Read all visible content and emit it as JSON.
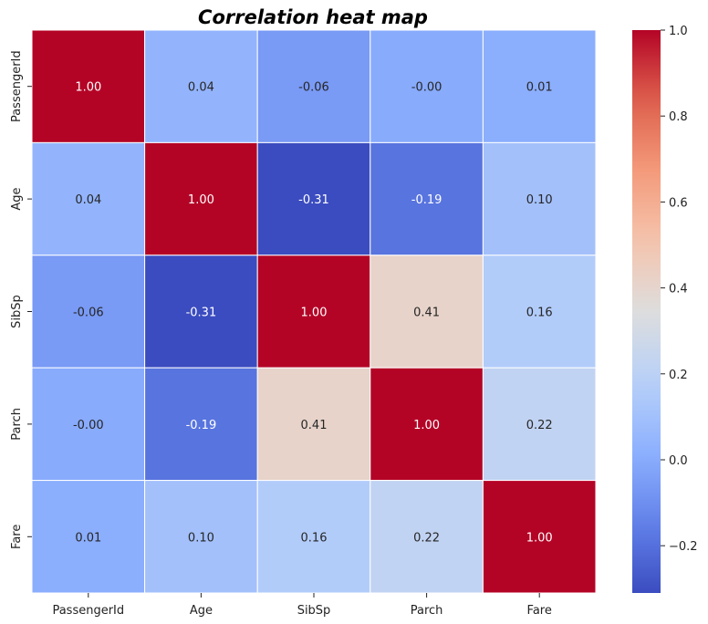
{
  "chart_data": {
    "type": "heatmap",
    "title": "Correlation heat map",
    "xlabel": "",
    "ylabel": "",
    "x_categories": [
      "PassengerId",
      "Age",
      "SibSp",
      "Parch",
      "Fare"
    ],
    "y_categories": [
      "PassengerId",
      "Age",
      "SibSp",
      "Parch",
      "Fare"
    ],
    "values": [
      [
        1.0,
        0.04,
        -0.06,
        -0.0,
        0.01
      ],
      [
        0.04,
        1.0,
        -0.31,
        -0.19,
        0.1
      ],
      [
        -0.06,
        -0.31,
        1.0,
        0.41,
        0.16
      ],
      [
        -0.0,
        -0.19,
        0.41,
        1.0,
        0.22
      ],
      [
        0.01,
        0.1,
        0.16,
        0.22,
        1.0
      ]
    ],
    "cell_labels": [
      [
        "1.00",
        "0.04",
        "-0.06",
        "-0.00",
        "0.01"
      ],
      [
        "0.04",
        "1.00",
        "-0.31",
        "-0.19",
        "0.10"
      ],
      [
        "-0.06",
        "-0.31",
        "1.00",
        "0.41",
        "0.16"
      ],
      [
        "-0.00",
        "-0.19",
        "0.41",
        "1.00",
        "0.22"
      ],
      [
        "0.01",
        "0.10",
        "0.16",
        "0.22",
        "1.00"
      ]
    ],
    "colormap": "coolwarm",
    "vmin": -0.31,
    "vmax": 1.0,
    "colorbar_ticks": [
      {
        "value": 1.0,
        "label": "1.0"
      },
      {
        "value": 0.8,
        "label": "0.8"
      },
      {
        "value": 0.6,
        "label": "0.6"
      },
      {
        "value": 0.4,
        "label": "0.4"
      },
      {
        "value": 0.2,
        "label": "0.2"
      },
      {
        "value": 0.0,
        "label": "0.0"
      },
      {
        "value": -0.2,
        "label": "−0.2"
      }
    ],
    "cell_border_color": "#ffffff",
    "grid": false
  }
}
